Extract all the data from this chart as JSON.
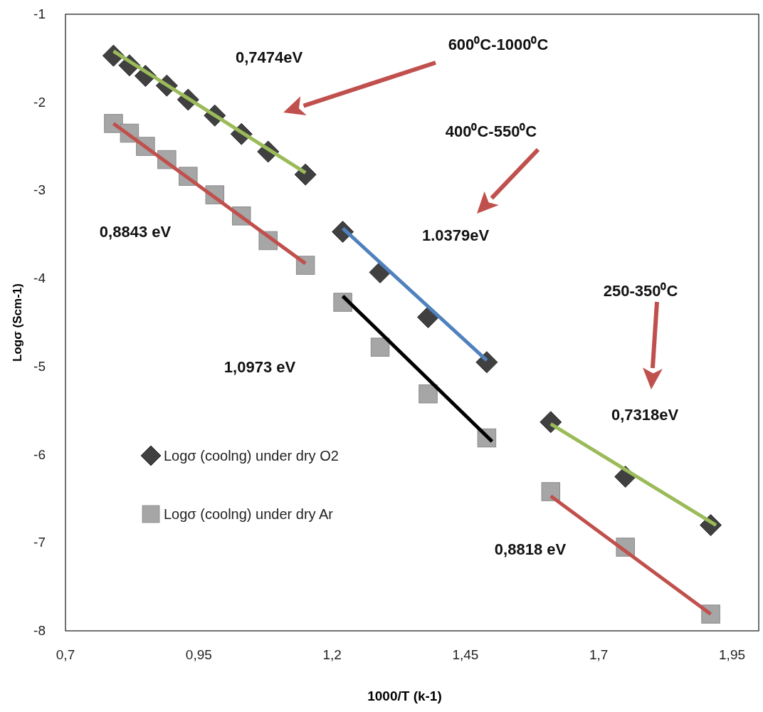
{
  "chart_data": {
    "type": "scatter",
    "xlabel": "1000/T (k-1)",
    "ylabel": "Logσ (Scm-1)",
    "xlim": [
      0.7,
      2.0
    ],
    "xticks": [
      {
        "value": 0.7,
        "label": "0,7"
      },
      {
        "value": 0.95,
        "label": "0,95"
      },
      {
        "value": 1.2,
        "label": "1,2"
      },
      {
        "value": 1.45,
        "label": "1,45"
      },
      {
        "value": 1.7,
        "label": "1,7"
      },
      {
        "value": 1.95,
        "label": "1,95"
      }
    ],
    "ylim": [
      -8,
      -1
    ],
    "yticks": [
      -8,
      -7,
      -6,
      -5,
      -4,
      -3,
      -2,
      -1
    ],
    "grid": false,
    "legend": "left",
    "series": [
      {
        "name": "Logσ (coolng) under dry O2",
        "color": "#404040",
        "marker": "diamond",
        "x": [
          0.79,
          0.82,
          0.85,
          0.89,
          0.93,
          0.98,
          1.03,
          1.08,
          1.15,
          1.22,
          1.29,
          1.38,
          1.49,
          1.61,
          1.75,
          1.91
        ],
        "values": [
          -1.47,
          -1.58,
          -1.7,
          -1.81,
          -1.97,
          -2.15,
          -2.36,
          -2.56,
          -2.82,
          -3.47,
          -3.93,
          -4.44,
          -4.95,
          -5.63,
          -6.25,
          -6.8
        ]
      },
      {
        "name": "Logσ (coolng) under dry Ar",
        "color": "#a6a6a6",
        "marker": "square",
        "x": [
          0.79,
          0.82,
          0.85,
          0.89,
          0.93,
          0.98,
          1.03,
          1.08,
          1.15,
          1.22,
          1.29,
          1.38,
          1.49,
          1.61,
          1.75,
          1.91
        ],
        "values": [
          -2.24,
          -2.35,
          -2.5,
          -2.65,
          -2.84,
          -3.05,
          -3.29,
          -3.57,
          -3.85,
          -4.27,
          -4.78,
          -5.31,
          -5.81,
          -6.42,
          -7.05,
          -7.81
        ]
      },
      {
        "type": "line",
        "color": "#9bbb59",
        "x": [
          0.79,
          1.15
        ],
        "values": [
          -1.42,
          -2.8
        ]
      },
      {
        "type": "line",
        "color": "#c0504d",
        "x": [
          0.79,
          1.15
        ],
        "values": [
          -2.24,
          -3.83
        ]
      },
      {
        "type": "line",
        "color": "#4f81bd",
        "x": [
          1.22,
          1.49
        ],
        "values": [
          -3.43,
          -4.93
        ]
      },
      {
        "type": "line",
        "color": "#000000",
        "x": [
          1.22,
          1.5
        ],
        "values": [
          -4.2,
          -5.85
        ]
      },
      {
        "type": "line",
        "color": "#9bbb59",
        "x": [
          1.61,
          1.92
        ],
        "values": [
          -5.65,
          -6.8
        ]
      },
      {
        "type": "line",
        "color": "#c0504d",
        "x": [
          1.61,
          1.91
        ],
        "values": [
          -6.47,
          -7.81
        ]
      }
    ],
    "annotations": [
      "0,7474eV",
      "600⁰C-1000⁰C",
      "400⁰C-550⁰C",
      "0,8843 eV",
      "1.0379eV",
      "250-350⁰C",
      "1,0973 eV",
      "0,7318eV",
      "0,8818 eV"
    ]
  }
}
